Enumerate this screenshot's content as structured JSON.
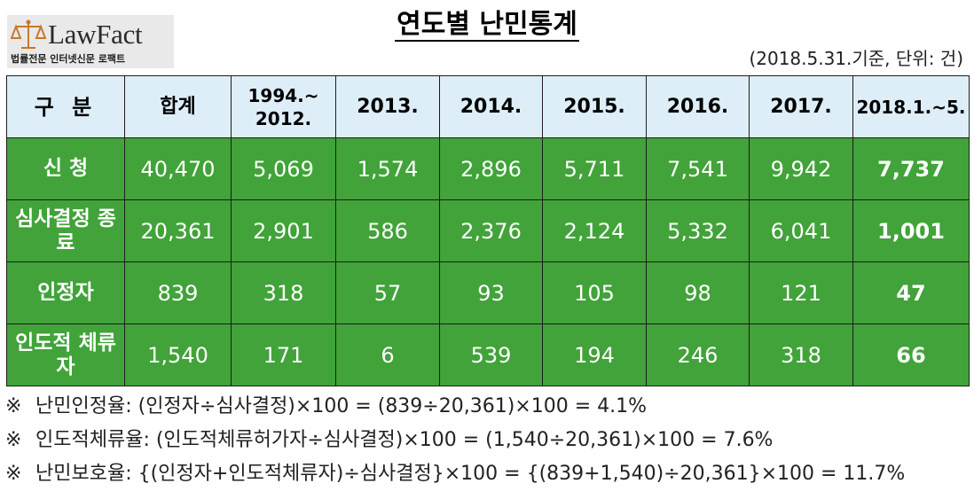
{
  "logo": {
    "brand": "LawFact",
    "tagline": "법률전문 인터넷신문 로팩트",
    "icon": "scales-icon",
    "color": "#c47a2a"
  },
  "title": "연도별 난민통계",
  "basis": "(2018.5.31.기준, 단위: 건)",
  "colors": {
    "header_bg": "#ddeef8",
    "body_bg": "#41a339",
    "body_text": "#ffffff"
  },
  "table": {
    "headers": [
      "구 분",
      "합계",
      "1994.~ 2012.",
      "2013.",
      "2014.",
      "2015.",
      "2016.",
      "2017.",
      "2018.1.~5."
    ],
    "rows": [
      {
        "label": "신 청",
        "cells": [
          "40,470",
          "5,069",
          "1,574",
          "2,896",
          "5,711",
          "7,541",
          "9,942",
          "7,737"
        ]
      },
      {
        "label": "심사결정 종료",
        "cells": [
          "20,361",
          "2,901",
          "586",
          "2,376",
          "2,124",
          "5,332",
          "6,041",
          "1,001"
        ]
      },
      {
        "label": "인정자",
        "cells": [
          "839",
          "318",
          "57",
          "93",
          "105",
          "98",
          "121",
          "47"
        ]
      },
      {
        "label": "인도적 체류자",
        "cells": [
          "1,540",
          "171",
          "6",
          "539",
          "194",
          "246",
          "318",
          "66"
        ]
      }
    ]
  },
  "notes": {
    "mark": "※",
    "lines": [
      "난민인정율: (인정자÷심사결정)×100 = (839÷20,361)×100 = 4.1%",
      "인도적체류율: (인도적체류허가자÷심사결정)×100 = (1,540÷20,361)×100 = 7.6%",
      "난민보호율: {(인정자+인도적체류자)÷심사결정}×100 = {(839+1,540)÷20,361}×100 = 11.7%"
    ]
  }
}
